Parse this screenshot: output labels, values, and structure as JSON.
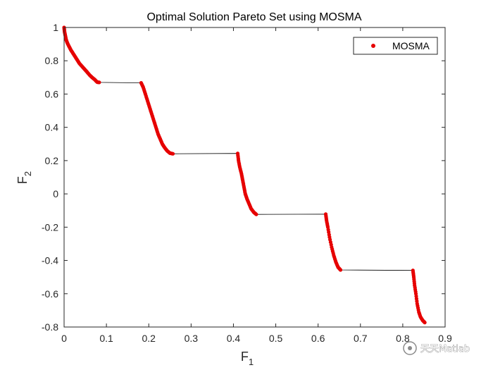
{
  "chart_data": {
    "type": "scatter",
    "title": "Optimal Solution Pareto Set using MOSMA",
    "xlabel": "F",
    "xlabel_sub": "1",
    "ylabel": "F",
    "ylabel_sub": "2",
    "xlim": [
      0,
      0.9
    ],
    "ylim": [
      -0.8,
      1
    ],
    "xticks": [
      "0",
      "0.1",
      "0.2",
      "0.3",
      "0.4",
      "0.5",
      "0.6",
      "0.7",
      "0.8",
      "0.9"
    ],
    "yticks": [
      "-0.8",
      "-0.6",
      "-0.4",
      "-0.2",
      "0",
      "0.2",
      "0.4",
      "0.6",
      "0.8",
      "1"
    ],
    "grid": false,
    "legend_position": "top-right",
    "series": [
      {
        "name": "MOSMA",
        "marker": "dot",
        "color": "#e60000",
        "segments": [
          [
            [
              0.0,
              1.0
            ],
            [
              0.001,
              0.975
            ],
            [
              0.003,
              0.95
            ],
            [
              0.005,
              0.925
            ],
            [
              0.008,
              0.905
            ],
            [
              0.012,
              0.885
            ],
            [
              0.016,
              0.865
            ],
            [
              0.021,
              0.845
            ],
            [
              0.026,
              0.825
            ],
            [
              0.031,
              0.805
            ],
            [
              0.036,
              0.785
            ],
            [
              0.042,
              0.768
            ],
            [
              0.048,
              0.75
            ],
            [
              0.054,
              0.733
            ],
            [
              0.06,
              0.715
            ],
            [
              0.066,
              0.7
            ],
            [
              0.072,
              0.688
            ],
            [
              0.078,
              0.672
            ],
            [
              0.083,
              0.67
            ]
          ],
          [
            [
              0.182,
              0.667
            ],
            [
              0.187,
              0.64
            ],
            [
              0.192,
              0.6
            ],
            [
              0.197,
              0.56
            ],
            [
              0.202,
              0.52
            ],
            [
              0.207,
              0.48
            ],
            [
              0.212,
              0.44
            ],
            [
              0.217,
              0.4
            ],
            [
              0.222,
              0.36
            ],
            [
              0.227,
              0.33
            ],
            [
              0.232,
              0.3
            ],
            [
              0.237,
              0.28
            ],
            [
              0.243,
              0.26
            ],
            [
              0.25,
              0.245
            ],
            [
              0.257,
              0.241
            ]
          ],
          [
            [
              0.41,
              0.243
            ],
            [
              0.412,
              0.2
            ],
            [
              0.415,
              0.16
            ],
            [
              0.419,
              0.12
            ],
            [
              0.422,
              0.08
            ],
            [
              0.425,
              0.04
            ],
            [
              0.428,
              0.0
            ],
            [
              0.432,
              -0.03
            ],
            [
              0.437,
              -0.06
            ],
            [
              0.442,
              -0.09
            ],
            [
              0.448,
              -0.11
            ],
            [
              0.454,
              -0.123
            ]
          ],
          [
            [
              0.618,
              -0.122
            ],
            [
              0.62,
              -0.16
            ],
            [
              0.623,
              -0.2
            ],
            [
              0.627,
              -0.26
            ],
            [
              0.632,
              -0.32
            ],
            [
              0.637,
              -0.37
            ],
            [
              0.642,
              -0.41
            ],
            [
              0.647,
              -0.44
            ],
            [
              0.653,
              -0.457
            ]
          ],
          [
            [
              0.824,
              -0.46
            ],
            [
              0.826,
              -0.5
            ],
            [
              0.828,
              -0.55
            ],
            [
              0.831,
              -0.6
            ],
            [
              0.834,
              -0.66
            ],
            [
              0.838,
              -0.71
            ],
            [
              0.842,
              -0.74
            ],
            [
              0.847,
              -0.76
            ],
            [
              0.852,
              -0.773
            ]
          ]
        ]
      }
    ]
  },
  "watermark": {
    "text": "天天Matlab"
  }
}
